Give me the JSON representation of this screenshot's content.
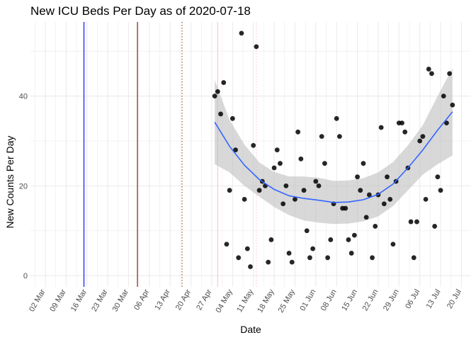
{
  "chart_data": {
    "type": "scatter",
    "title": "New ICU Beds Per Day as of 2020-07-18",
    "xlabel": "Date",
    "ylabel": "New Counts Per Day",
    "x_type": "date",
    "xlim": [
      "2020-02-26",
      "2020-07-23"
    ],
    "ylim": [
      -2.5,
      56.5
    ],
    "x_ticks": [
      "2020-03-02",
      "2020-03-09",
      "2020-03-16",
      "2020-03-23",
      "2020-03-30",
      "2020-04-06",
      "2020-04-13",
      "2020-04-20",
      "2020-04-27",
      "2020-05-04",
      "2020-05-11",
      "2020-05-18",
      "2020-05-25",
      "2020-06-01",
      "2020-06-08",
      "2020-06-15",
      "2020-06-22",
      "2020-06-29",
      "2020-07-06",
      "2020-07-13",
      "2020-07-20"
    ],
    "x_tick_labels": [
      "02 Mar",
      "09 Mar",
      "16 Mar",
      "23 Mar",
      "30 Mar",
      "06 Apr",
      "13 Apr",
      "20 Apr",
      "27 Apr",
      "04 May",
      "11 May",
      "18 May",
      "25 May",
      "01 Jun",
      "08 Jun",
      "15 Jun",
      "22 Jun",
      "29 Jun",
      "06 Jul",
      "13 Jul",
      "20 Jul"
    ],
    "y_ticks": [
      0,
      20,
      40
    ],
    "y_tick_labels": [
      "0",
      "20",
      "40"
    ],
    "grid": true,
    "legend": "none",
    "colors": {
      "points": "#000000",
      "smooth_line": "#3366ff",
      "smooth_band": "#bebebe",
      "grid": "#ebebeb"
    },
    "reference_lines": [
      {
        "x": "2020-03-15",
        "color": "#0000ff",
        "style": "solid"
      },
      {
        "x": "2020-04-02",
        "color": "#8b0000",
        "style": "solid"
      },
      {
        "x": "2020-04-17",
        "color": "#8b4513",
        "style": "dotted"
      },
      {
        "x": "2020-04-29",
        "color": "#ffc0cb",
        "style": "solid"
      },
      {
        "x": "2020-05-12",
        "color": "#ffc0cb",
        "style": "dotted"
      }
    ],
    "points": [
      {
        "x": "2020-04-28",
        "y": 40
      },
      {
        "x": "2020-04-29",
        "y": 41
      },
      {
        "x": "2020-04-30",
        "y": 36
      },
      {
        "x": "2020-05-01",
        "y": 43
      },
      {
        "x": "2020-05-02",
        "y": 7
      },
      {
        "x": "2020-05-03",
        "y": 19
      },
      {
        "x": "2020-05-04",
        "y": 35
      },
      {
        "x": "2020-05-05",
        "y": 28
      },
      {
        "x": "2020-05-06",
        "y": 4
      },
      {
        "x": "2020-05-07",
        "y": 54
      },
      {
        "x": "2020-05-08",
        "y": 17
      },
      {
        "x": "2020-05-09",
        "y": 6
      },
      {
        "x": "2020-05-10",
        "y": 2
      },
      {
        "x": "2020-05-11",
        "y": 29
      },
      {
        "x": "2020-05-12",
        "y": 51
      },
      {
        "x": "2020-05-13",
        "y": 19
      },
      {
        "x": "2020-05-14",
        "y": 21
      },
      {
        "x": "2020-05-15",
        "y": 20
      },
      {
        "x": "2020-05-16",
        "y": 3
      },
      {
        "x": "2020-05-17",
        "y": 8
      },
      {
        "x": "2020-05-18",
        "y": 24
      },
      {
        "x": "2020-05-19",
        "y": 28
      },
      {
        "x": "2020-05-20",
        "y": 25
      },
      {
        "x": "2020-05-21",
        "y": 16
      },
      {
        "x": "2020-05-22",
        "y": 20
      },
      {
        "x": "2020-05-23",
        "y": 5
      },
      {
        "x": "2020-05-24",
        "y": 3
      },
      {
        "x": "2020-05-25",
        "y": 17
      },
      {
        "x": "2020-05-26",
        "y": 32
      },
      {
        "x": "2020-05-27",
        "y": 26
      },
      {
        "x": "2020-05-28",
        "y": 19
      },
      {
        "x": "2020-05-29",
        "y": 10
      },
      {
        "x": "2020-05-30",
        "y": 4
      },
      {
        "x": "2020-05-31",
        "y": 6
      },
      {
        "x": "2020-06-01",
        "y": 21
      },
      {
        "x": "2020-06-02",
        "y": 20
      },
      {
        "x": "2020-06-03",
        "y": 31
      },
      {
        "x": "2020-06-04",
        "y": 25
      },
      {
        "x": "2020-06-05",
        "y": 4
      },
      {
        "x": "2020-06-06",
        "y": 8
      },
      {
        "x": "2020-06-07",
        "y": 16
      },
      {
        "x": "2020-06-08",
        "y": 35
      },
      {
        "x": "2020-06-09",
        "y": 31
      },
      {
        "x": "2020-06-10",
        "y": 15
      },
      {
        "x": "2020-06-11",
        "y": 15
      },
      {
        "x": "2020-06-12",
        "y": 8
      },
      {
        "x": "2020-06-13",
        "y": 5
      },
      {
        "x": "2020-06-14",
        "y": 9
      },
      {
        "x": "2020-06-15",
        "y": 22
      },
      {
        "x": "2020-06-16",
        "y": 19
      },
      {
        "x": "2020-06-17",
        "y": 25
      },
      {
        "x": "2020-06-18",
        "y": 13
      },
      {
        "x": "2020-06-19",
        "y": 18
      },
      {
        "x": "2020-06-20",
        "y": 4
      },
      {
        "x": "2020-06-21",
        "y": 11
      },
      {
        "x": "2020-06-22",
        "y": 18
      },
      {
        "x": "2020-06-23",
        "y": 33
      },
      {
        "x": "2020-06-24",
        "y": 16
      },
      {
        "x": "2020-06-25",
        "y": 22
      },
      {
        "x": "2020-06-26",
        "y": 17
      },
      {
        "x": "2020-06-27",
        "y": 7
      },
      {
        "x": "2020-06-28",
        "y": 21
      },
      {
        "x": "2020-06-29",
        "y": 34
      },
      {
        "x": "2020-06-30",
        "y": 34
      },
      {
        "x": "2020-07-01",
        "y": 32
      },
      {
        "x": "2020-07-02",
        "y": 24
      },
      {
        "x": "2020-07-03",
        "y": 12
      },
      {
        "x": "2020-07-04",
        "y": 4
      },
      {
        "x": "2020-07-05",
        "y": 12
      },
      {
        "x": "2020-07-06",
        "y": 30
      },
      {
        "x": "2020-07-07",
        "y": 31
      },
      {
        "x": "2020-07-08",
        "y": 17
      },
      {
        "x": "2020-07-09",
        "y": 46
      },
      {
        "x": "2020-07-10",
        "y": 45
      },
      {
        "x": "2020-07-11",
        "y": 11
      },
      {
        "x": "2020-07-12",
        "y": 22
      },
      {
        "x": "2020-07-13",
        "y": 19
      },
      {
        "x": "2020-07-14",
        "y": 40
      },
      {
        "x": "2020-07-15",
        "y": 34
      },
      {
        "x": "2020-07-16",
        "y": 45
      },
      {
        "x": "2020-07-17",
        "y": 38
      }
    ],
    "smooth": [
      {
        "x": "2020-04-28",
        "y": 34.2,
        "lo": 24.8,
        "hi": 43.6
      },
      {
        "x": "2020-05-03",
        "y": 28.8,
        "lo": 23.0,
        "hi": 34.7
      },
      {
        "x": "2020-05-08",
        "y": 24.6,
        "lo": 20.0,
        "hi": 29.2
      },
      {
        "x": "2020-05-13",
        "y": 21.4,
        "lo": 17.6,
        "hi": 25.2
      },
      {
        "x": "2020-05-18",
        "y": 19.2,
        "lo": 15.3,
        "hi": 23.1
      },
      {
        "x": "2020-05-23",
        "y": 17.8,
        "lo": 13.5,
        "hi": 22.1
      },
      {
        "x": "2020-05-28",
        "y": 17.2,
        "lo": 12.3,
        "hi": 22.1
      },
      {
        "x": "2020-06-02",
        "y": 16.8,
        "lo": 11.8,
        "hi": 21.8
      },
      {
        "x": "2020-06-07",
        "y": 16.3,
        "lo": 11.5,
        "hi": 21.1
      },
      {
        "x": "2020-06-12",
        "y": 16.4,
        "lo": 11.6,
        "hi": 21.2
      },
      {
        "x": "2020-06-17",
        "y": 16.9,
        "lo": 12.1,
        "hi": 21.7
      },
      {
        "x": "2020-06-22",
        "y": 18.1,
        "lo": 13.2,
        "hi": 23.0
      },
      {
        "x": "2020-06-27",
        "y": 20.4,
        "lo": 15.5,
        "hi": 25.3
      },
      {
        "x": "2020-07-02",
        "y": 24.0,
        "lo": 19.0,
        "hi": 29.0
      },
      {
        "x": "2020-07-07",
        "y": 28.0,
        "lo": 22.5,
        "hi": 33.5
      },
      {
        "x": "2020-07-12",
        "y": 32.4,
        "lo": 24.8,
        "hi": 40.0
      },
      {
        "x": "2020-07-17",
        "y": 36.5,
        "lo": 26.8,
        "hi": 46.2
      }
    ]
  }
}
